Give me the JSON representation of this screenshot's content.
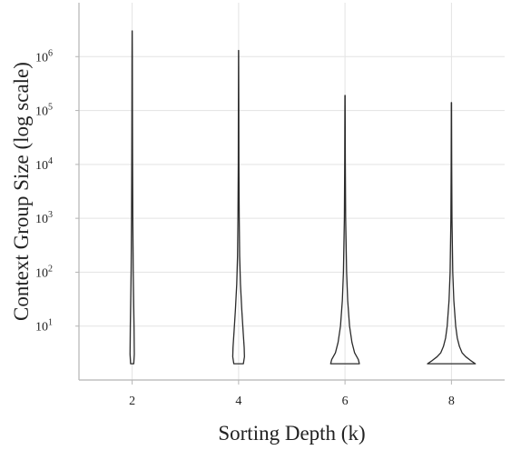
{
  "chart_data": {
    "type": "violin",
    "title": "",
    "xlabel": "Sorting Depth (k)",
    "ylabel": "Context Group Size (log scale)",
    "y_scale": "log",
    "ylim": [
      1,
      10000000
    ],
    "xlim": [
      1,
      9
    ],
    "grid": true,
    "x_ticks": [
      {
        "value": 2,
        "label": "2"
      },
      {
        "value": 4,
        "label": "4"
      },
      {
        "value": 6,
        "label": "6"
      },
      {
        "value": 8,
        "label": "8"
      }
    ],
    "y_ticks": [
      {
        "value": 10,
        "base": "10",
        "exp": "1"
      },
      {
        "value": 100,
        "base": "10",
        "exp": "2"
      },
      {
        "value": 1000,
        "base": "10",
        "exp": "3"
      },
      {
        "value": 10000,
        "base": "10",
        "exp": "4"
      },
      {
        "value": 100000,
        "base": "10",
        "exp": "5"
      },
      {
        "value": 1000000,
        "base": "10",
        "exp": "6"
      }
    ],
    "series": [
      {
        "category": 2,
        "min": 2,
        "max": 3000000,
        "profile": [
          [
            2,
            0.03
          ],
          [
            3,
            0.04
          ],
          [
            10,
            0.035
          ],
          [
            100,
            0.02
          ],
          [
            1000,
            0.012
          ],
          [
            10000,
            0.008
          ],
          [
            100000,
            0.005
          ],
          [
            1000000,
            0.003
          ],
          [
            3000000,
            0.001
          ]
        ]
      },
      {
        "category": 4,
        "min": 2,
        "max": 1300000,
        "profile": [
          [
            2,
            0.09
          ],
          [
            2.7,
            0.11
          ],
          [
            4,
            0.105
          ],
          [
            8,
            0.085
          ],
          [
            20,
            0.06
          ],
          [
            60,
            0.035
          ],
          [
            200,
            0.02
          ],
          [
            1000,
            0.012
          ],
          [
            10000,
            0.006
          ],
          [
            100000,
            0.004
          ],
          [
            1300000,
            0.001
          ]
        ]
      },
      {
        "category": 6,
        "min": 2,
        "max": 190000,
        "profile": [
          [
            2,
            0.27
          ],
          [
            2.4,
            0.25
          ],
          [
            3.2,
            0.18
          ],
          [
            5,
            0.13
          ],
          [
            10,
            0.085
          ],
          [
            30,
            0.05
          ],
          [
            100,
            0.03
          ],
          [
            1000,
            0.012
          ],
          [
            10000,
            0.006
          ],
          [
            190000,
            0.002
          ]
        ]
      },
      {
        "category": 8,
        "min": 2,
        "max": 140000,
        "profile": [
          [
            2,
            0.45
          ],
          [
            2.3,
            0.36
          ],
          [
            2.7,
            0.27
          ],
          [
            3.2,
            0.2
          ],
          [
            4.2,
            0.15
          ],
          [
            6,
            0.11
          ],
          [
            10,
            0.08
          ],
          [
            30,
            0.045
          ],
          [
            100,
            0.025
          ],
          [
            1000,
            0.01
          ],
          [
            10000,
            0.005
          ],
          [
            140000,
            0.002
          ]
        ]
      }
    ]
  }
}
